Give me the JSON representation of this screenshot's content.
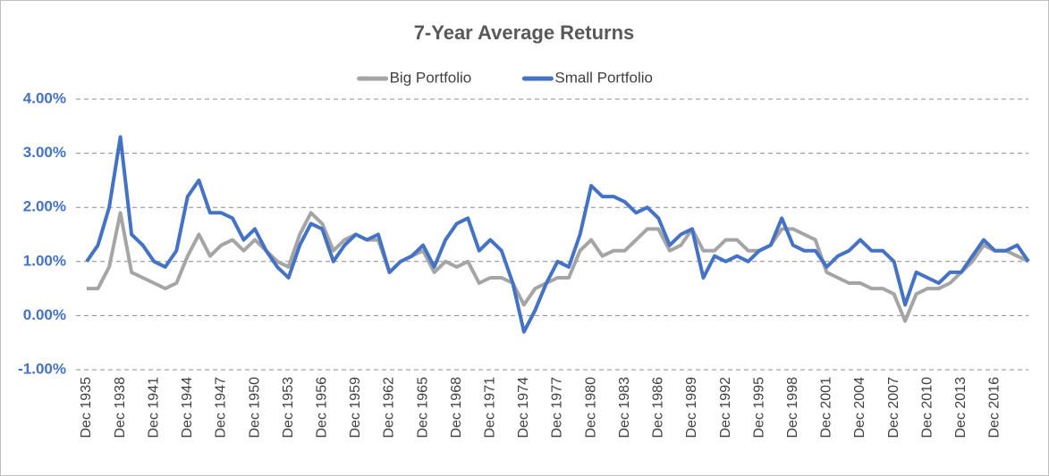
{
  "chart_data": {
    "type": "line",
    "title": "7-Year Average Returns",
    "categories": [
      "Dec 1935",
      null,
      null,
      "Dec 1938",
      null,
      null,
      "Dec 1941",
      null,
      null,
      "Dec 1944",
      null,
      null,
      "Dec 1947",
      null,
      null,
      "Dec 1950",
      null,
      null,
      "Dec 1953",
      null,
      null,
      "Dec 1956",
      null,
      null,
      "Dec 1959",
      null,
      null,
      "Dec 1962",
      null,
      null,
      "Dec 1965",
      null,
      null,
      "Dec 1968",
      null,
      null,
      "Dec 1971",
      null,
      null,
      "Dec 1974",
      null,
      null,
      "Dec 1977",
      null,
      null,
      "Dec 1980",
      null,
      null,
      "Dec 1983",
      null,
      null,
      "Dec 1986",
      null,
      null,
      "Dec 1989",
      null,
      null,
      "Dec 1992",
      null,
      null,
      "Dec 1995",
      null,
      null,
      "Dec 1998",
      null,
      null,
      "Dec 2001",
      null,
      null,
      "Dec 2004",
      null,
      null,
      "Dec 2007",
      null,
      null,
      "Dec 2010",
      null,
      null,
      "Dec 2013",
      null,
      null,
      "Dec 2016",
      null,
      null,
      null
    ],
    "series": [
      {
        "name": "Big Portfolio",
        "color": "#a5a5a5",
        "values": [
          0.5,
          0.5,
          0.9,
          1.9,
          0.8,
          0.7,
          0.6,
          0.5,
          0.6,
          1.1,
          1.5,
          1.1,
          1.3,
          1.4,
          1.2,
          1.4,
          1.2,
          1.0,
          0.9,
          1.5,
          1.9,
          1.7,
          1.2,
          1.4,
          1.5,
          1.4,
          1.4,
          0.8,
          1.0,
          1.1,
          1.2,
          0.8,
          1.0,
          0.9,
          1.0,
          0.6,
          0.7,
          0.7,
          0.6,
          0.2,
          0.5,
          0.6,
          0.7,
          0.7,
          1.2,
          1.4,
          1.1,
          1.2,
          1.2,
          1.4,
          1.6,
          1.6,
          1.2,
          1.3,
          1.6,
          1.2,
          1.2,
          1.4,
          1.4,
          1.2,
          1.2,
          1.3,
          1.6,
          1.6,
          1.5,
          1.4,
          0.8,
          0.7,
          0.6,
          0.6,
          0.5,
          0.5,
          0.4,
          -0.1,
          0.4,
          0.5,
          0.5,
          0.6,
          0.8,
          1.0,
          1.3,
          1.2,
          1.2,
          1.1,
          1.0
        ]
      },
      {
        "name": "Small Portfolio",
        "color": "#4472c4",
        "values": [
          1.0,
          1.3,
          2.0,
          3.3,
          1.5,
          1.3,
          1.0,
          0.9,
          1.2,
          2.2,
          2.5,
          1.9,
          1.9,
          1.8,
          1.4,
          1.6,
          1.2,
          0.9,
          0.7,
          1.3,
          1.7,
          1.6,
          1.0,
          1.3,
          1.5,
          1.4,
          1.5,
          0.8,
          1.0,
          1.1,
          1.3,
          0.9,
          1.4,
          1.7,
          1.8,
          1.2,
          1.4,
          1.2,
          0.6,
          -0.3,
          0.1,
          0.6,
          1.0,
          0.9,
          1.5,
          2.4,
          2.2,
          2.2,
          2.1,
          1.9,
          2.0,
          1.8,
          1.3,
          1.5,
          1.6,
          0.7,
          1.1,
          1.0,
          1.1,
          1.0,
          1.2,
          1.3,
          1.8,
          1.3,
          1.2,
          1.2,
          0.9,
          1.1,
          1.2,
          1.4,
          1.2,
          1.2,
          1.0,
          0.2,
          0.8,
          0.7,
          0.6,
          0.8,
          0.8,
          1.1,
          1.4,
          1.2,
          1.2,
          1.3,
          1.0
        ]
      }
    ],
    "ylim": [
      -1,
      4
    ],
    "yticks": [
      {
        "value": -1,
        "label": "-1.00%"
      },
      {
        "value": 0,
        "label": "0.00%"
      },
      {
        "value": 1,
        "label": "1.00%"
      },
      {
        "value": 2,
        "label": "2.00%"
      },
      {
        "value": 3,
        "label": "3.00%"
      },
      {
        "value": 4,
        "label": "4.00%"
      }
    ],
    "grid": true,
    "legend": "top"
  }
}
